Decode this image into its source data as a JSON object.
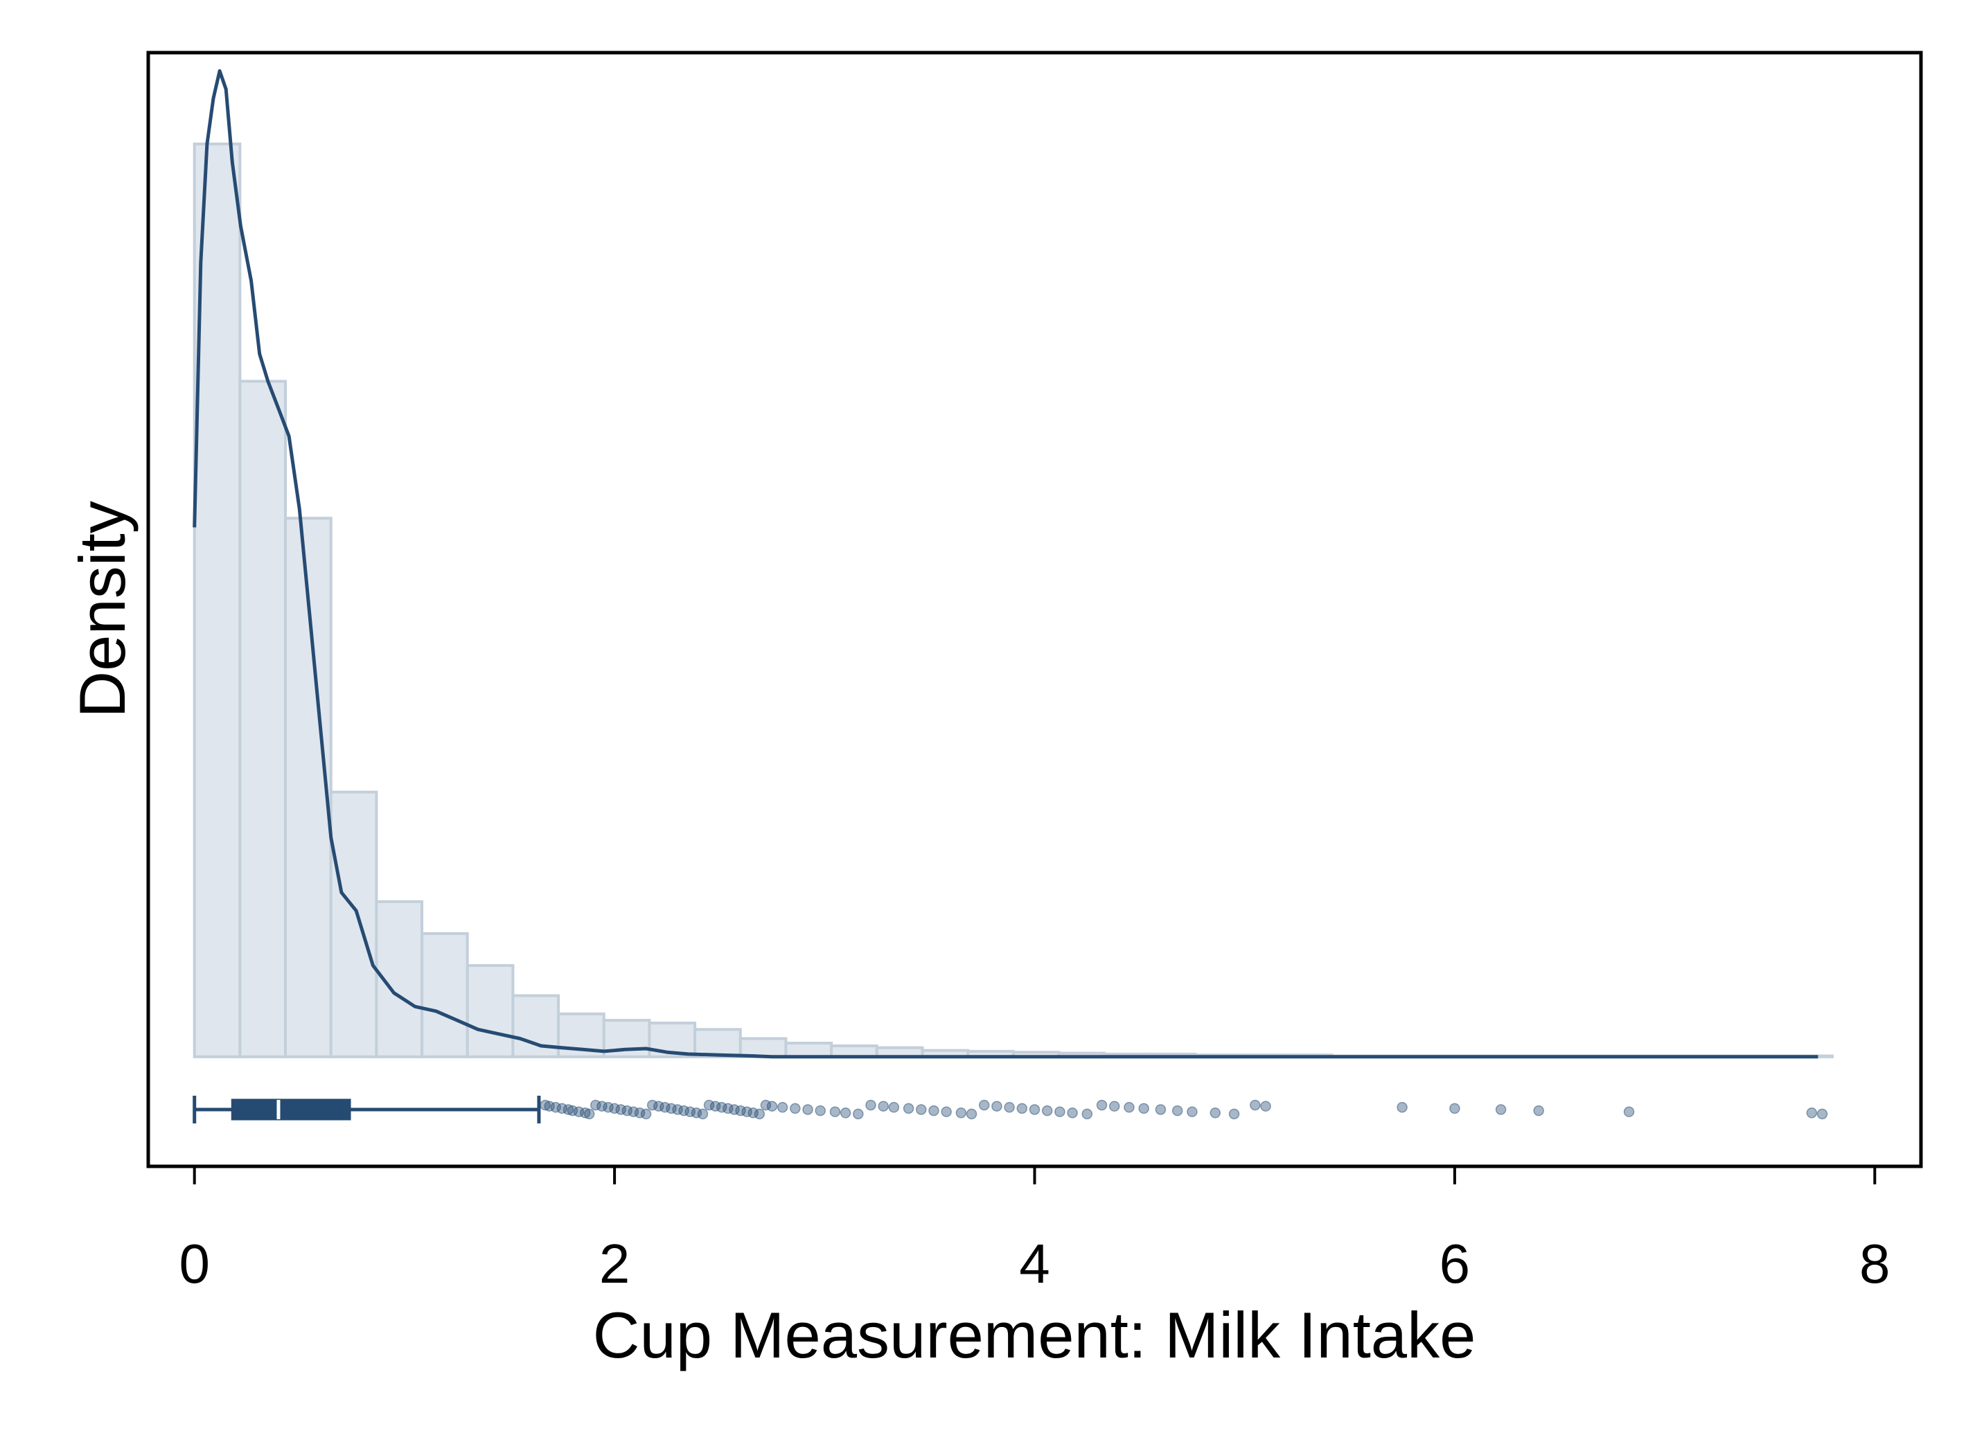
{
  "chart_data": {
    "type": "bar",
    "xlabel": "Cup Measurement: Milk Intake",
    "ylabel": "Density",
    "xlim": [
      -0.22,
      8.22
    ],
    "ylim": [
      -0.12,
      1.1
    ],
    "x_ticks": [
      {
        "value": 0,
        "label": "0"
      },
      {
        "value": 2,
        "label": "2"
      },
      {
        "value": 4,
        "label": "4"
      },
      {
        "value": 6,
        "label": "6"
      },
      {
        "value": 8,
        "label": "8"
      }
    ],
    "y_ticks_shown": false,
    "grid": false,
    "legend": "none",
    "histogram": {
      "bin_width": 0.2166,
      "bin_start": 0,
      "heights": [
        1.0,
        0.74,
        0.59,
        0.29,
        0.17,
        0.135,
        0.1,
        0.067,
        0.047,
        0.04,
        0.037,
        0.03,
        0.02,
        0.015,
        0.012,
        0.01,
        0.007,
        0.006,
        0.005,
        0.004,
        0.003,
        0.003,
        0.002,
        0.002,
        0.002,
        0.001,
        0.001,
        0.001,
        0.001,
        0.001,
        0.001,
        0.001,
        0.001,
        0.001,
        0.001,
        0.001
      ]
    },
    "density_curve": {
      "x": [
        0,
        0.03,
        0.06,
        0.09,
        0.12,
        0.15,
        0.18,
        0.22,
        0.27,
        0.31,
        0.35,
        0.4,
        0.45,
        0.5,
        0.55,
        0.6,
        0.65,
        0.7,
        0.77,
        0.85,
        0.95,
        1.05,
        1.15,
        1.25,
        1.35,
        1.45,
        1.55,
        1.65,
        1.75,
        1.85,
        1.95,
        2.05,
        2.15,
        2.25,
        2.35,
        2.5,
        2.65,
        2.75,
        2.85,
        3.0,
        3.2,
        3.5,
        4.0,
        4.5,
        4.9,
        5.3,
        6.0,
        7.0,
        7.73
      ],
      "y": [
        0.58,
        0.87,
        1.0,
        1.05,
        1.08,
        1.06,
        0.98,
        0.91,
        0.85,
        0.77,
        0.74,
        0.71,
        0.68,
        0.6,
        0.48,
        0.36,
        0.24,
        0.18,
        0.16,
        0.1,
        0.07,
        0.055,
        0.05,
        0.04,
        0.03,
        0.025,
        0.02,
        0.012,
        0.01,
        0.008,
        0.006,
        0.008,
        0.009,
        0.005,
        0.003,
        0.002,
        0.001,
        0.0,
        0.0,
        0.0,
        0.0,
        0.0,
        0.0,
        0.0,
        0.0,
        0.0,
        0.0,
        0.0,
        0.0
      ]
    },
    "boxplot": {
      "min": 0,
      "q1": 0.18,
      "median": 0.4,
      "q3": 0.74,
      "whisker_high": 1.64,
      "outliers": [
        1.67,
        1.69,
        1.72,
        1.75,
        1.78,
        1.8,
        1.83,
        1.86,
        1.88,
        1.91,
        1.94,
        1.97,
        2.0,
        2.03,
        2.06,
        2.09,
        2.12,
        2.15,
        2.18,
        2.21,
        2.24,
        2.27,
        2.3,
        2.33,
        2.36,
        2.39,
        2.42,
        2.45,
        2.48,
        2.51,
        2.54,
        2.57,
        2.6,
        2.63,
        2.66,
        2.69,
        2.72,
        2.75,
        2.8,
        2.86,
        2.92,
        2.98,
        3.05,
        3.1,
        3.16,
        3.22,
        3.28,
        3.33,
        3.4,
        3.46,
        3.52,
        3.58,
        3.65,
        3.7,
        3.76,
        3.82,
        3.88,
        3.94,
        4.0,
        4.06,
        4.12,
        4.18,
        4.25,
        4.32,
        4.38,
        4.45,
        4.52,
        4.6,
        4.68,
        4.75,
        4.86,
        4.95,
        5.05,
        5.1,
        5.75,
        6.0,
        6.22,
        6.4,
        6.83,
        7.7,
        7.75
      ]
    },
    "colors": {
      "bar_fill": "#dfe6ed",
      "bar_edge": "#c3cfda",
      "curve": "#264b73",
      "box": "#264b73",
      "points": "#264b73",
      "axis": "#000000"
    }
  }
}
